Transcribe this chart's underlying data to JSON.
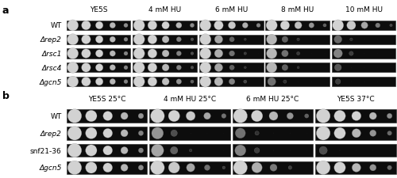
{
  "panel_a": {
    "columns": [
      "YE5S",
      "4 mM HU",
      "6 mM HU",
      "8 mM HU",
      "10 mM HU"
    ],
    "rows": [
      "WT",
      "Δrep2",
      "Δrsc1",
      "Δrsc4",
      "Δgcn5"
    ],
    "growth": [
      [
        [
          1.0,
          1.0,
          1.0,
          0.85,
          0.6
        ],
        [
          1.0,
          1.0,
          1.0,
          0.85,
          0.6
        ],
        [
          1.0,
          1.0,
          0.95,
          0.8,
          0.55
        ],
        [
          1.0,
          1.0,
          0.9,
          0.65,
          0.35
        ],
        [
          1.0,
          0.95,
          0.75,
          0.5,
          0.2
        ]
      ],
      [
        [
          1.0,
          1.0,
          1.0,
          0.85,
          0.55
        ],
        [
          1.0,
          1.0,
          0.85,
          0.55,
          0.25
        ],
        [
          1.0,
          0.75,
          0.35,
          0.08,
          0.0
        ],
        [
          0.85,
          0.35,
          0.08,
          0.0,
          0.0
        ],
        [
          0.4,
          0.05,
          0.0,
          0.0,
          0.0
        ]
      ],
      [
        [
          1.0,
          1.0,
          1.0,
          0.85,
          0.55
        ],
        [
          1.0,
          1.0,
          0.85,
          0.55,
          0.25
        ],
        [
          1.0,
          0.8,
          0.45,
          0.12,
          0.0
        ],
        [
          0.85,
          0.45,
          0.12,
          0.0,
          0.0
        ],
        [
          0.55,
          0.15,
          0.0,
          0.0,
          0.0
        ]
      ],
      [
        [
          1.0,
          1.0,
          1.0,
          0.85,
          0.55
        ],
        [
          1.0,
          1.0,
          0.85,
          0.55,
          0.25
        ],
        [
          1.0,
          0.75,
          0.35,
          0.08,
          0.0
        ],
        [
          0.85,
          0.35,
          0.05,
          0.0,
          0.0
        ],
        [
          0.3,
          0.0,
          0.0,
          0.0,
          0.0
        ]
      ],
      [
        [
          1.0,
          1.0,
          1.0,
          0.85,
          0.55
        ],
        [
          1.0,
          1.0,
          0.9,
          0.65,
          0.35
        ],
        [
          1.0,
          0.85,
          0.55,
          0.2,
          0.0
        ],
        [
          0.45,
          0.08,
          0.0,
          0.0,
          0.0
        ],
        [
          0.15,
          0.0,
          0.0,
          0.0,
          0.0
        ]
      ]
    ]
  },
  "panel_b": {
    "columns": [
      "YE5S 25°C",
      "4 mM HU 25°C",
      "6 mM HU 25°C",
      "YE5S 37°C"
    ],
    "rows": [
      "WT",
      "Δrep2",
      "snf21-36",
      "Δgcn5"
    ],
    "growth": [
      [
        [
          1.0,
          1.0,
          1.0,
          0.85,
          0.65
        ],
        [
          1.0,
          1.0,
          0.95,
          0.75,
          0.45
        ],
        [
          1.0,
          1.0,
          0.85,
          0.65,
          0.35
        ],
        [
          1.0,
          1.0,
          1.0,
          0.85,
          0.6
        ]
      ],
      [
        [
          1.0,
          1.0,
          1.0,
          0.85,
          0.55
        ],
        [
          0.65,
          0.25,
          0.0,
          0.0,
          0.0
        ],
        [
          0.45,
          0.08,
          0.0,
          0.0,
          0.0
        ],
        [
          1.0,
          1.0,
          0.85,
          0.65,
          0.4
        ]
      ],
      [
        [
          1.0,
          1.0,
          1.0,
          0.85,
          0.55
        ],
        [
          0.75,
          0.35,
          0.05,
          0.0,
          0.0
        ],
        [
          0.55,
          0.15,
          0.0,
          0.0,
          0.0
        ],
        [
          0.25,
          0.0,
          0.0,
          0.0,
          0.0
        ]
      ],
      [
        [
          1.0,
          1.0,
          1.0,
          0.85,
          0.6
        ],
        [
          1.0,
          0.95,
          0.75,
          0.45,
          0.15
        ],
        [
          1.0,
          0.8,
          0.5,
          0.15,
          0.0
        ],
        [
          1.0,
          1.0,
          0.85,
          0.65,
          0.4
        ]
      ]
    ]
  },
  "fig_bg": "#ffffff",
  "plate_bg": "#0d0d0d",
  "font_size": 6.5,
  "panel_label_size": 9
}
